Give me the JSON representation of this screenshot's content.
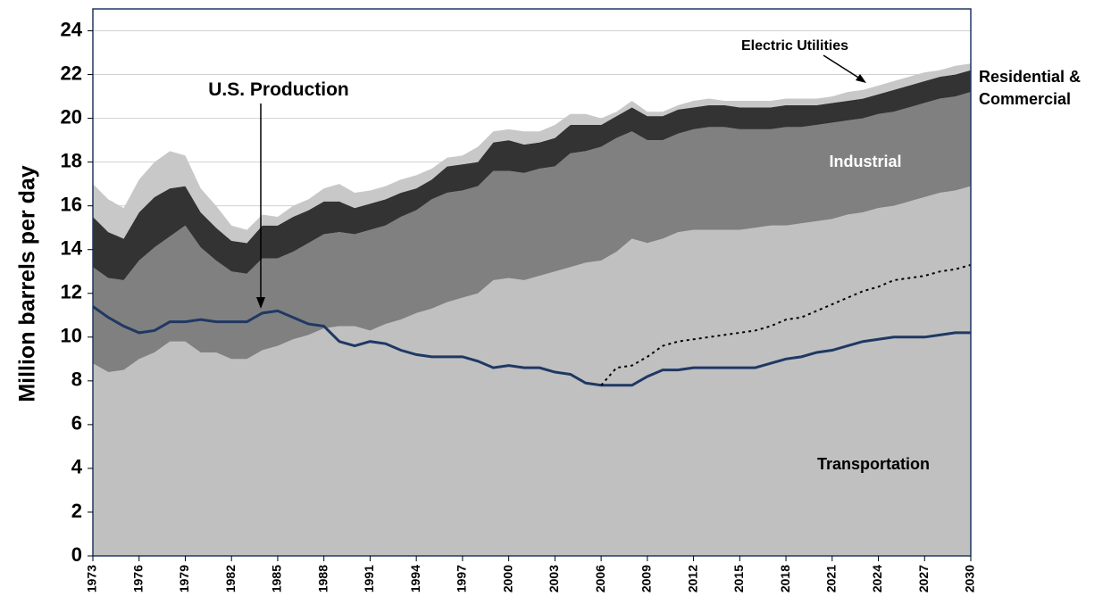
{
  "chart_data": {
    "type": "area",
    "y_label": "Million barrels per day",
    "x": [
      1973,
      1974,
      1975,
      1976,
      1977,
      1978,
      1979,
      1980,
      1981,
      1982,
      1983,
      1984,
      1985,
      1986,
      1987,
      1988,
      1989,
      1990,
      1991,
      1992,
      1993,
      1994,
      1995,
      1996,
      1997,
      1998,
      1999,
      2000,
      2001,
      2002,
      2003,
      2004,
      2005,
      2006,
      2007,
      2008,
      2009,
      2010,
      2011,
      2012,
      2013,
      2014,
      2015,
      2016,
      2017,
      2018,
      2019,
      2020,
      2021,
      2022,
      2023,
      2024,
      2025,
      2026,
      2027,
      2028,
      2029,
      2030
    ],
    "xlim": [
      1973,
      2030
    ],
    "xticks": [
      1973,
      1976,
      1979,
      1982,
      1985,
      1988,
      1991,
      1994,
      1997,
      2000,
      2003,
      2006,
      2009,
      2012,
      2015,
      2018,
      2021,
      2024,
      2027,
      2030
    ],
    "ylim": [
      0,
      25
    ],
    "yticks": [
      0,
      2,
      4,
      6,
      8,
      10,
      12,
      14,
      16,
      18,
      20,
      22,
      24
    ],
    "grid": true,
    "series": [
      {
        "name": "Transportation",
        "style": "area",
        "color": "#c0c0c0",
        "values": [
          8.8,
          8.4,
          8.5,
          9.0,
          9.3,
          9.8,
          9.8,
          9.3,
          9.3,
          9.0,
          9.0,
          9.4,
          9.6,
          9.9,
          10.1,
          10.4,
          10.5,
          10.5,
          10.3,
          10.6,
          10.8,
          11.1,
          11.3,
          11.6,
          11.8,
          12.0,
          12.6,
          12.7,
          12.6,
          12.8,
          13.0,
          13.2,
          13.4,
          13.5,
          13.9,
          14.5,
          14.3,
          14.5,
          14.8,
          14.9,
          14.9,
          14.9,
          14.9,
          15.0,
          15.1,
          15.1,
          15.2,
          15.3,
          15.4,
          15.6,
          15.7,
          15.9,
          16.0,
          16.2,
          16.4,
          16.6,
          16.7,
          16.9
        ]
      },
      {
        "name": "Industrial",
        "style": "area",
        "color": "#808080",
        "values": [
          4.4,
          4.3,
          4.1,
          4.5,
          4.8,
          4.8,
          5.3,
          4.8,
          4.2,
          4.0,
          3.9,
          4.2,
          4.0,
          4.0,
          4.2,
          4.3,
          4.3,
          4.2,
          4.6,
          4.5,
          4.7,
          4.7,
          5.0,
          5.0,
          4.9,
          4.9,
          5.0,
          4.9,
          4.9,
          4.9,
          4.8,
          5.2,
          5.1,
          5.2,
          5.2,
          4.9,
          4.7,
          4.5,
          4.5,
          4.6,
          4.7,
          4.7,
          4.6,
          4.5,
          4.4,
          4.5,
          4.4,
          4.4,
          4.4,
          4.3,
          4.3,
          4.3,
          4.3,
          4.3,
          4.3,
          4.3,
          4.3,
          4.3
        ]
      },
      {
        "name": "Residential & Commercial",
        "style": "area",
        "color": "#333333",
        "values": [
          2.3,
          2.1,
          1.9,
          2.2,
          2.3,
          2.2,
          1.8,
          1.6,
          1.5,
          1.4,
          1.4,
          1.5,
          1.5,
          1.6,
          1.5,
          1.5,
          1.4,
          1.2,
          1.2,
          1.2,
          1.1,
          1.0,
          0.9,
          1.2,
          1.2,
          1.1,
          1.3,
          1.4,
          1.3,
          1.2,
          1.3,
          1.3,
          1.2,
          1.0,
          1.0,
          1.1,
          1.1,
          1.1,
          1.1,
          1.0,
          1.0,
          1.0,
          1.0,
          1.0,
          1.0,
          1.0,
          1.0,
          0.9,
          0.9,
          0.9,
          0.9,
          0.9,
          1.0,
          1.0,
          1.0,
          1.0,
          1.0,
          1.0
        ]
      },
      {
        "name": "Electric Utilities",
        "style": "area",
        "color": "#c8c8c8",
        "values": [
          1.5,
          1.5,
          1.4,
          1.5,
          1.6,
          1.7,
          1.4,
          1.1,
          1.0,
          0.7,
          0.6,
          0.5,
          0.4,
          0.5,
          0.5,
          0.6,
          0.8,
          0.7,
          0.6,
          0.6,
          0.6,
          0.6,
          0.5,
          0.4,
          0.4,
          0.7,
          0.5,
          0.5,
          0.6,
          0.5,
          0.6,
          0.5,
          0.5,
          0.3,
          0.2,
          0.3,
          0.2,
          0.2,
          0.2,
          0.3,
          0.3,
          0.2,
          0.3,
          0.3,
          0.3,
          0.3,
          0.3,
          0.3,
          0.3,
          0.4,
          0.4,
          0.4,
          0.4,
          0.4,
          0.4,
          0.3,
          0.4,
          0.3
        ]
      },
      {
        "name": "U.S. Production",
        "style": "line",
        "color": "#1f3864",
        "values": [
          11.4,
          10.9,
          10.5,
          10.2,
          10.3,
          10.7,
          10.7,
          10.8,
          10.7,
          10.7,
          10.7,
          11.1,
          11.2,
          10.9,
          10.6,
          10.5,
          9.8,
          9.6,
          9.8,
          9.7,
          9.4,
          9.2,
          9.1,
          9.1,
          9.1,
          8.9,
          8.6,
          8.7,
          8.6,
          8.6,
          8.4,
          8.3,
          7.9,
          7.8,
          7.8,
          7.8,
          8.2,
          8.5,
          8.5,
          8.6,
          8.6,
          8.6,
          8.6,
          8.6,
          8.8,
          9.0,
          9.1,
          9.3,
          9.4,
          9.6,
          9.8,
          9.9,
          10.0,
          10.0,
          10.0,
          10.1,
          10.2,
          10.2
        ]
      },
      {
        "style": "dotted",
        "color": "#000000",
        "values": [
          null,
          null,
          null,
          null,
          null,
          null,
          null,
          null,
          null,
          null,
          null,
          null,
          null,
          null,
          null,
          null,
          null,
          null,
          null,
          null,
          null,
          null,
          null,
          null,
          null,
          null,
          null,
          null,
          null,
          null,
          null,
          null,
          null,
          7.8,
          8.6,
          8.7,
          9.1,
          9.6,
          9.8,
          9.9,
          10.0,
          10.1,
          10.2,
          10.3,
          10.5,
          10.8,
          10.9,
          11.2,
          11.5,
          11.8,
          12.1,
          12.3,
          12.6,
          12.7,
          12.8,
          13.0,
          13.1,
          13.3
        ]
      }
    ]
  }
}
